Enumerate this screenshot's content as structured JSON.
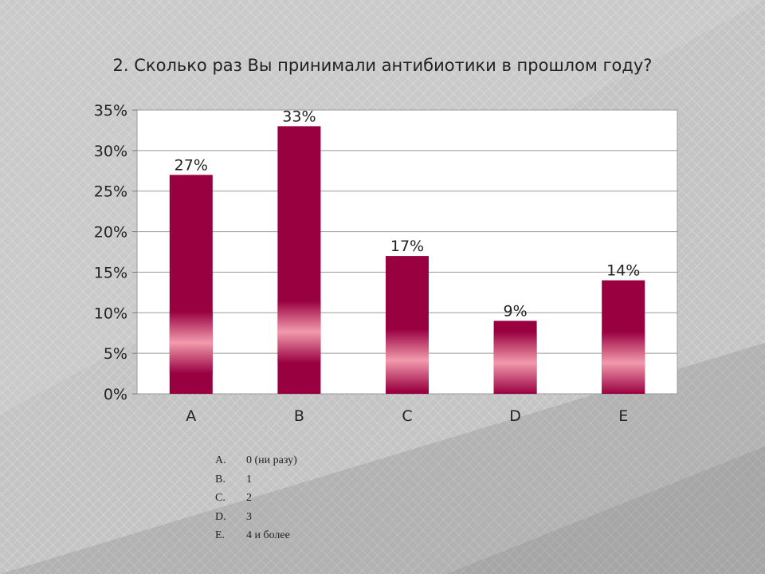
{
  "title": "2. Сколько раз Вы принимали антибиотики в прошлом году?",
  "chart_data": {
    "type": "bar",
    "title": "2. Сколько раз Вы принимали антибиотики в прошлом году?",
    "categories": [
      "A",
      "B",
      "C",
      "D",
      "E"
    ],
    "values": [
      27,
      33,
      17,
      9,
      14
    ],
    "data_labels": [
      "27%",
      "33%",
      "17%",
      "9%",
      "14%"
    ],
    "ylim": [
      0,
      35
    ],
    "yticks": [
      0,
      5,
      10,
      15,
      20,
      25,
      30,
      35
    ],
    "ytick_labels": [
      "0%",
      "5%",
      "10%",
      "15%",
      "20%",
      "25%",
      "30%",
      "35%"
    ],
    "xlabel": "",
    "ylabel": "",
    "grid": true,
    "bar_color": "#990040",
    "highlight_color": "#f29aad",
    "plot_background": "#ffffff"
  },
  "legend": [
    {
      "letter": "A.",
      "text": "0 (ни разу)"
    },
    {
      "letter": "B.",
      "text": "1"
    },
    {
      "letter": "C.",
      "text": "2"
    },
    {
      "letter": "D.",
      "text": "3"
    },
    {
      "letter": "E.",
      "text": "4 и более"
    }
  ]
}
